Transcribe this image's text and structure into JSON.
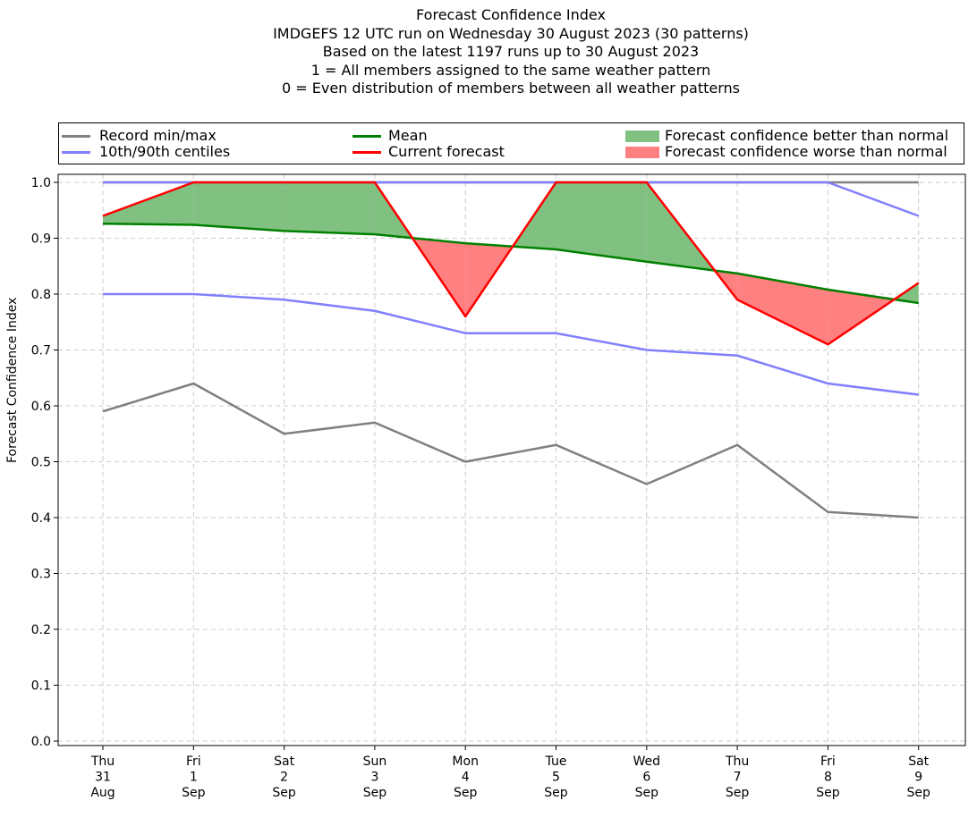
{
  "titles": [
    "Forecast Confidence Index",
    "IMDGEFS 12 UTC run on Wednesday 30 August 2023 (30 patterns)",
    "Based on the latest 1197 runs up to 30 August 2023",
    "1 = All members assigned to the same weather pattern",
    "0 = Even distribution of members between all weather patterns"
  ],
  "legend": {
    "record": "Record min/max",
    "centiles": "10th/90th centiles",
    "mean": "Mean",
    "current": "Current forecast",
    "better": "Forecast confidence better than normal",
    "worse": "Forecast confidence worse than normal"
  },
  "colors": {
    "record": "#808080",
    "centiles": "#8080ff",
    "mean": "#008000",
    "current": "#ff0000",
    "better": "#80c080",
    "worse": "#ff8080",
    "grid": "#cccccc"
  },
  "chart_data": {
    "type": "line",
    "ylabel": "Forecast Confidence Index",
    "ylim": [
      0,
      1
    ],
    "yticks": [
      "0.0",
      "0.1",
      "0.2",
      "0.3",
      "0.4",
      "0.5",
      "0.6",
      "0.7",
      "0.8",
      "0.9",
      "1.0"
    ],
    "grid": true,
    "legend_position": "top",
    "categories": [
      [
        "Thu",
        "31",
        "Aug"
      ],
      [
        "Fri",
        "1",
        "Sep"
      ],
      [
        "Sat",
        "2",
        "Sep"
      ],
      [
        "Sun",
        "3",
        "Sep"
      ],
      [
        "Mon",
        "4",
        "Sep"
      ],
      [
        "Tue",
        "5",
        "Sep"
      ],
      [
        "Wed",
        "6",
        "Sep"
      ],
      [
        "Thu",
        "7",
        "Sep"
      ],
      [
        "Fri",
        "8",
        "Sep"
      ],
      [
        "Sat",
        "9",
        "Sep"
      ]
    ],
    "series": [
      {
        "name": "Record min/max",
        "key": "record_max",
        "values": [
          1.0,
          1.0,
          1.0,
          1.0,
          1.0,
          1.0,
          1.0,
          1.0,
          1.0,
          1.0
        ]
      },
      {
        "name": "Record min/max",
        "key": "record_min",
        "values": [
          0.59,
          0.64,
          0.55,
          0.57,
          0.5,
          0.53,
          0.46,
          0.53,
          0.41,
          0.4
        ]
      },
      {
        "name": "10th/90th centiles",
        "key": "p90",
        "values": [
          1.0,
          1.0,
          1.0,
          1.0,
          1.0,
          1.0,
          1.0,
          1.0,
          1.0,
          0.94
        ]
      },
      {
        "name": "10th/90th centiles",
        "key": "p10",
        "values": [
          0.8,
          0.8,
          0.79,
          0.77,
          0.73,
          0.73,
          0.7,
          0.69,
          0.64,
          0.62
        ]
      },
      {
        "name": "Mean",
        "key": "mean",
        "values": [
          0.926,
          0.924,
          0.913,
          0.907,
          0.891,
          0.88,
          0.858,
          0.837,
          0.808,
          0.784
        ]
      },
      {
        "name": "Current forecast",
        "key": "current",
        "values": [
          0.94,
          1.0,
          1.0,
          1.0,
          0.76,
          1.0,
          1.0,
          0.79,
          0.71,
          0.82
        ]
      }
    ]
  }
}
